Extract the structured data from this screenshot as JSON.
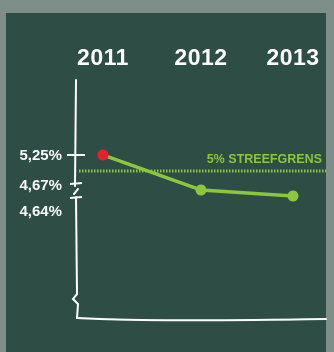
{
  "colors": {
    "board": "#2e4d45",
    "frame": "#7d8f88",
    "chalk": "#ffffff",
    "series": "#8cc63f",
    "highlight": "#e8202a"
  },
  "chart_data": {
    "type": "line",
    "title": "",
    "xlabel": "",
    "ylabel": "",
    "categories": [
      "2011",
      "2012",
      "2013"
    ],
    "series": [
      {
        "values": [
          5.25,
          4.67,
          4.64
        ],
        "highlight_index": 0
      }
    ],
    "y_tick_labels": [
      "5,25%",
      "4,67%",
      "4,64%"
    ],
    "y_tick_values": [
      5.25,
      4.67,
      4.64
    ],
    "target": {
      "label": "5% STREEFGRENS",
      "value": 5.0
    },
    "axis_break": true,
    "grid": false,
    "legend": "none"
  }
}
